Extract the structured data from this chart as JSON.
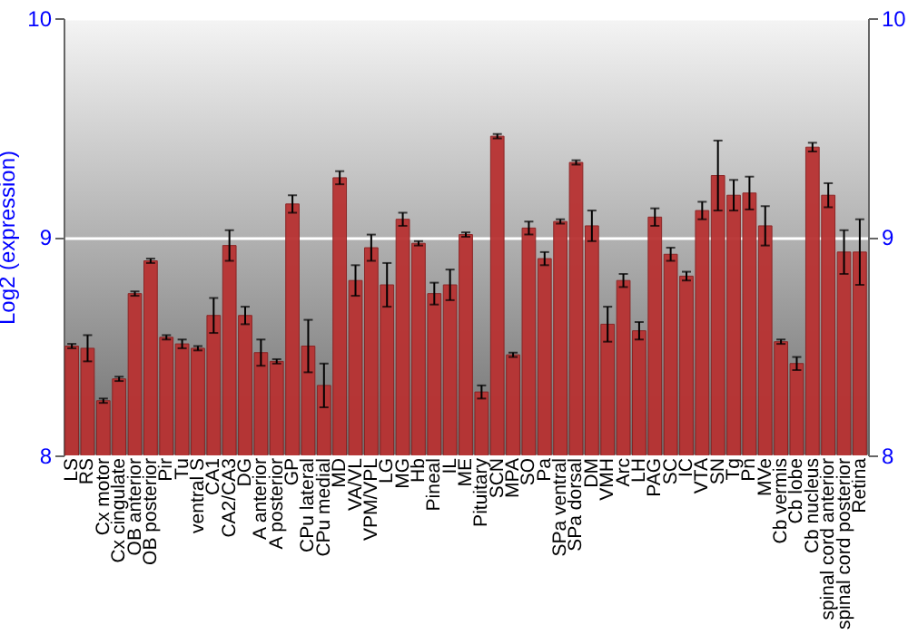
{
  "chart_data": {
    "type": "bar",
    "ylabel": "Log2 (expression)",
    "categories": [
      "LS",
      "RS",
      "Cx motor",
      "Cx cingulate",
      "OB anterior",
      "OB posterior",
      "Pir",
      "Tu",
      "ventral S",
      "CA1",
      "CA2/CA3",
      "DG",
      "A anterior",
      "A posterior",
      "GP",
      "CPu lateral",
      "CPu medial",
      "MD",
      "VA/VL",
      "VPM/VPL",
      "LG",
      "MG",
      "Hb",
      "Pineal",
      "IL",
      "ME",
      "Pituitary",
      "SCN",
      "MPA",
      "SO",
      "Pa",
      "SPa ventral",
      "SPa dorsal",
      "DM",
      "VMH",
      "Arc",
      "LH",
      "PAG",
      "SC",
      "IC",
      "VTA",
      "SN",
      "Tg",
      "Pn",
      "MVe",
      "Cb vermis",
      "Cb lobe",
      "Cb nucleus",
      "spinal cord anterior",
      "spinal cord posterior",
      "Retina"
    ],
    "series": [
      {
        "color": "#b83232",
        "values": [
          8.5,
          8.49,
          8.25,
          8.35,
          8.74,
          8.89,
          8.54,
          8.51,
          8.49,
          8.64,
          8.96,
          8.64,
          8.47,
          8.43,
          9.15,
          8.5,
          8.32,
          9.27,
          8.8,
          8.95,
          8.78,
          9.08,
          8.97,
          8.74,
          8.78,
          9.01,
          8.29,
          9.46,
          8.46,
          9.04,
          8.9,
          9.07,
          9.34,
          9.05,
          8.6,
          8.8,
          8.57,
          9.09,
          8.92,
          8.82,
          9.12,
          9.28,
          9.19,
          9.2,
          9.05,
          8.52,
          8.42,
          9.41,
          9.19,
          8.93,
          8.93
        ],
        "errors": [
          0.01,
          0.06,
          0.01,
          0.01,
          0.01,
          0.01,
          0.01,
          0.02,
          0.01,
          0.08,
          0.07,
          0.04,
          0.06,
          0.01,
          0.04,
          0.12,
          0.1,
          0.03,
          0.07,
          0.06,
          0.1,
          0.03,
          0.01,
          0.05,
          0.07,
          0.01,
          0.03,
          0.01,
          0.01,
          0.03,
          0.03,
          0.01,
          0.01,
          0.07,
          0.08,
          0.03,
          0.04,
          0.04,
          0.03,
          0.02,
          0.04,
          0.16,
          0.07,
          0.075,
          0.09,
          0.01,
          0.03,
          0.02,
          0.055,
          0.1,
          0.15
        ]
      }
    ],
    "ylim": [
      8,
      10
    ],
    "yticks": [
      8,
      9,
      10
    ],
    "y2lim": [
      8,
      10
    ],
    "y2ticks": [
      8,
      9,
      10
    ],
    "grid": "y"
  }
}
